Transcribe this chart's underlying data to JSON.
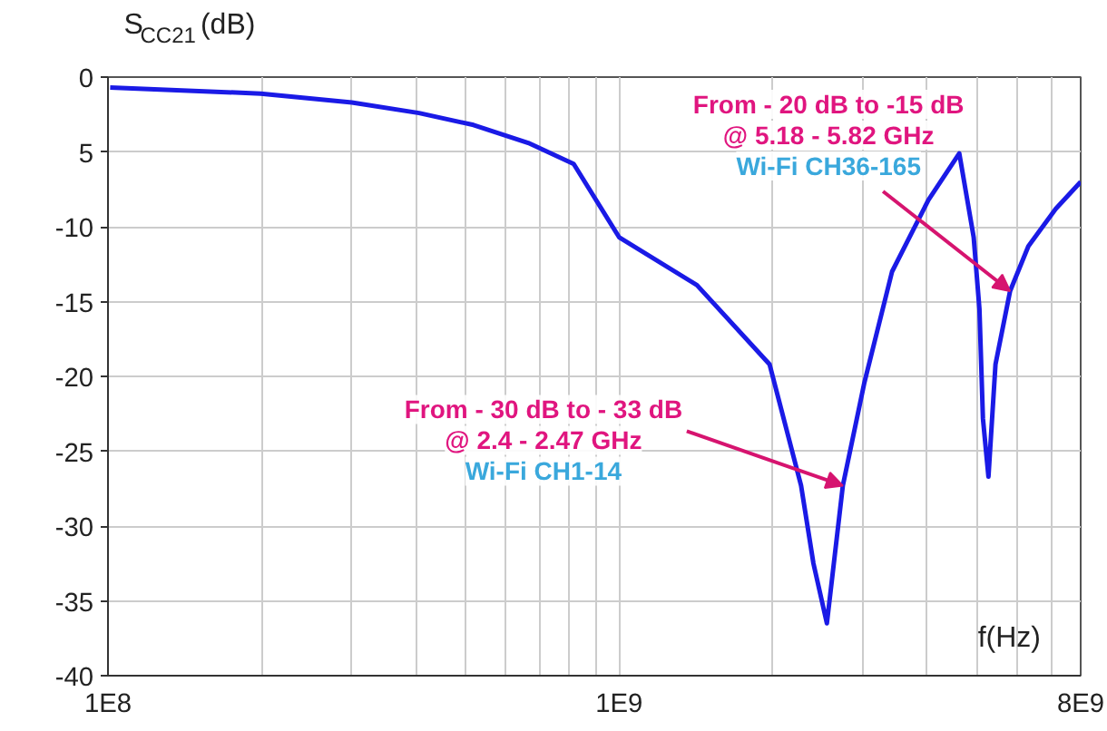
{
  "chart_data": {
    "type": "line",
    "ylabel": "S$_{CC21}$(dB)",
    "xlabel": "f(Hz)",
    "log": "x",
    "grid": true,
    "marker": "none",
    "line_style": "solid",
    "xlim": [
      100000000,
      8000000000
    ],
    "ylim": [
      -40,
      0
    ],
    "xticks": [
      {
        "value": 100000000,
        "label": "1E8"
      },
      {
        "value": 200000000,
        "label": null
      },
      {
        "value": 300000000,
        "label": null
      },
      {
        "value": 400000000,
        "label": null
      },
      {
        "value": 500000000,
        "label": null
      },
      {
        "value": 600000000,
        "label": null
      },
      {
        "value": 700000000,
        "label": null
      },
      {
        "value": 800000000,
        "label": null
      },
      {
        "value": 900000000,
        "label": null
      },
      {
        "value": 1000000000,
        "label": "1E9"
      },
      {
        "value": 2000000000,
        "label": null
      },
      {
        "value": 3000000000,
        "label": null
      },
      {
        "value": 4000000000,
        "label": null
      },
      {
        "value": 5000000000,
        "label": null
      },
      {
        "value": 6000000000,
        "label": null
      },
      {
        "value": 7000000000,
        "label": null
      },
      {
        "value": 8000000000,
        "label": "8E9"
      }
    ],
    "yticks": [
      0,
      {
        "value": -5,
        "label": "5"
      },
      -10,
      -15,
      -20,
      -25,
      -30,
      -35,
      -40
    ],
    "series": [
      {
        "color": "#1a1ae6",
        "x": [
          101000000,
          199000000,
          300000000,
          406000000,
          519000000,
          664000000,
          815000000,
          1000000000,
          1420000000,
          1970000000,
          2270000000,
          2400000000,
          2550000000,
          2740000000,
          3020000000,
          3420000000,
          4030000000,
          4630000000,
          4940000000,
          5070000000,
          5150000000,
          5280000000,
          5450000000,
          5820000000,
          6320000000,
          7150000000,
          8000000000
        ],
        "values": [
          -0.7,
          -1.1,
          -1.7,
          -2.4,
          -3.2,
          -4.4,
          -5.8,
          -10.7,
          -13.9,
          -19.2,
          -27.3,
          -32.5,
          -36.5,
          -27.3,
          -20.4,
          -13,
          -8.2,
          -5.1,
          -10.7,
          -15.5,
          -22.8,
          -26.7,
          -19.2,
          -14.3,
          -11.3,
          -8.8,
          -7
        ]
      }
    ],
    "annotations": [
      {
        "text": "From - 30 dB to - 33 dB\n@ 2.4 - 2.47 GHz\nWi-Fi CH1-14",
        "x": 2740000000,
        "y": -27.3
      },
      {
        "text": "From - 20 dB to -15 dB\n@ 5.18 - 5.82 GHz\nWi-Fi CH36-165",
        "x": 5820000000,
        "y": -14.3
      }
    ]
  }
}
